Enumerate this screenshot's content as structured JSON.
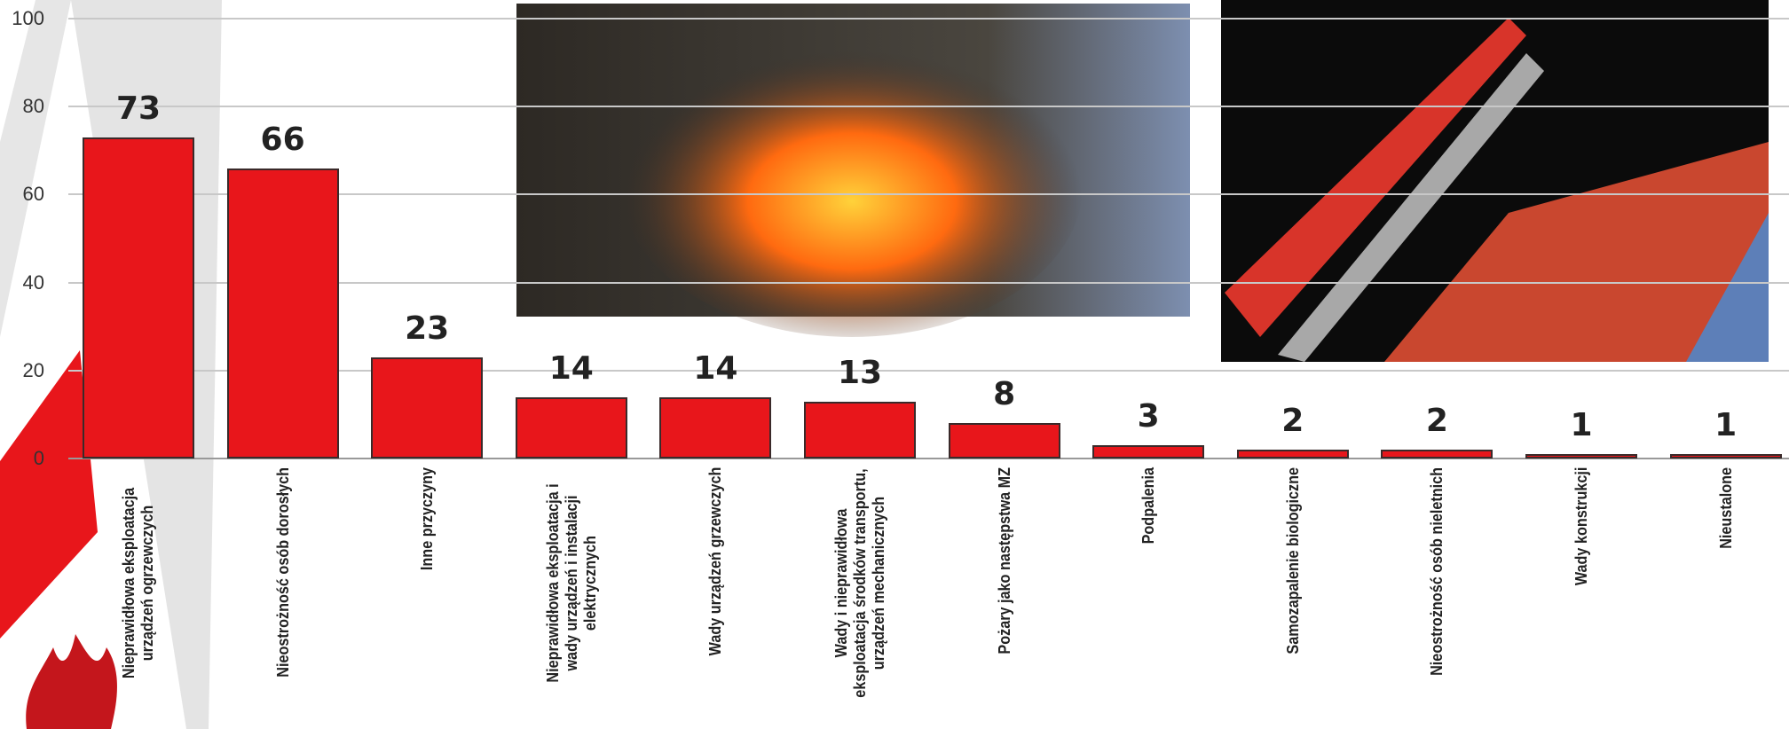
{
  "chart_data": {
    "type": "bar",
    "categories": [
      "Nieprawidłowa eksploatacja urządzeń ogrzewczych",
      "Nieostrożność osób dorosłych",
      "Inne przyczyny",
      "Nieprawidłowa eksploatacja i wady urządzeń i instalacji elektrycznych",
      "Wady urządzeń grzewczych",
      "Wady i nieprawidłowa eksploatacja środków transportu, urządzeń mechanicznych",
      "Pożary jako następstwa MZ",
      "Podpalenia",
      "Samozapalenie biologiczne",
      "Nieostrożność osób nieletnich",
      "Wady konstrukcji",
      "Nieustalone"
    ],
    "values": [
      73,
      66,
      23,
      14,
      14,
      13,
      8,
      3,
      2,
      2,
      1,
      1
    ],
    "color": "#e8161b",
    "ylim": [
      0,
      100
    ],
    "yticks": [
      0,
      20,
      40,
      60,
      80,
      100
    ],
    "grid": true
  }
}
